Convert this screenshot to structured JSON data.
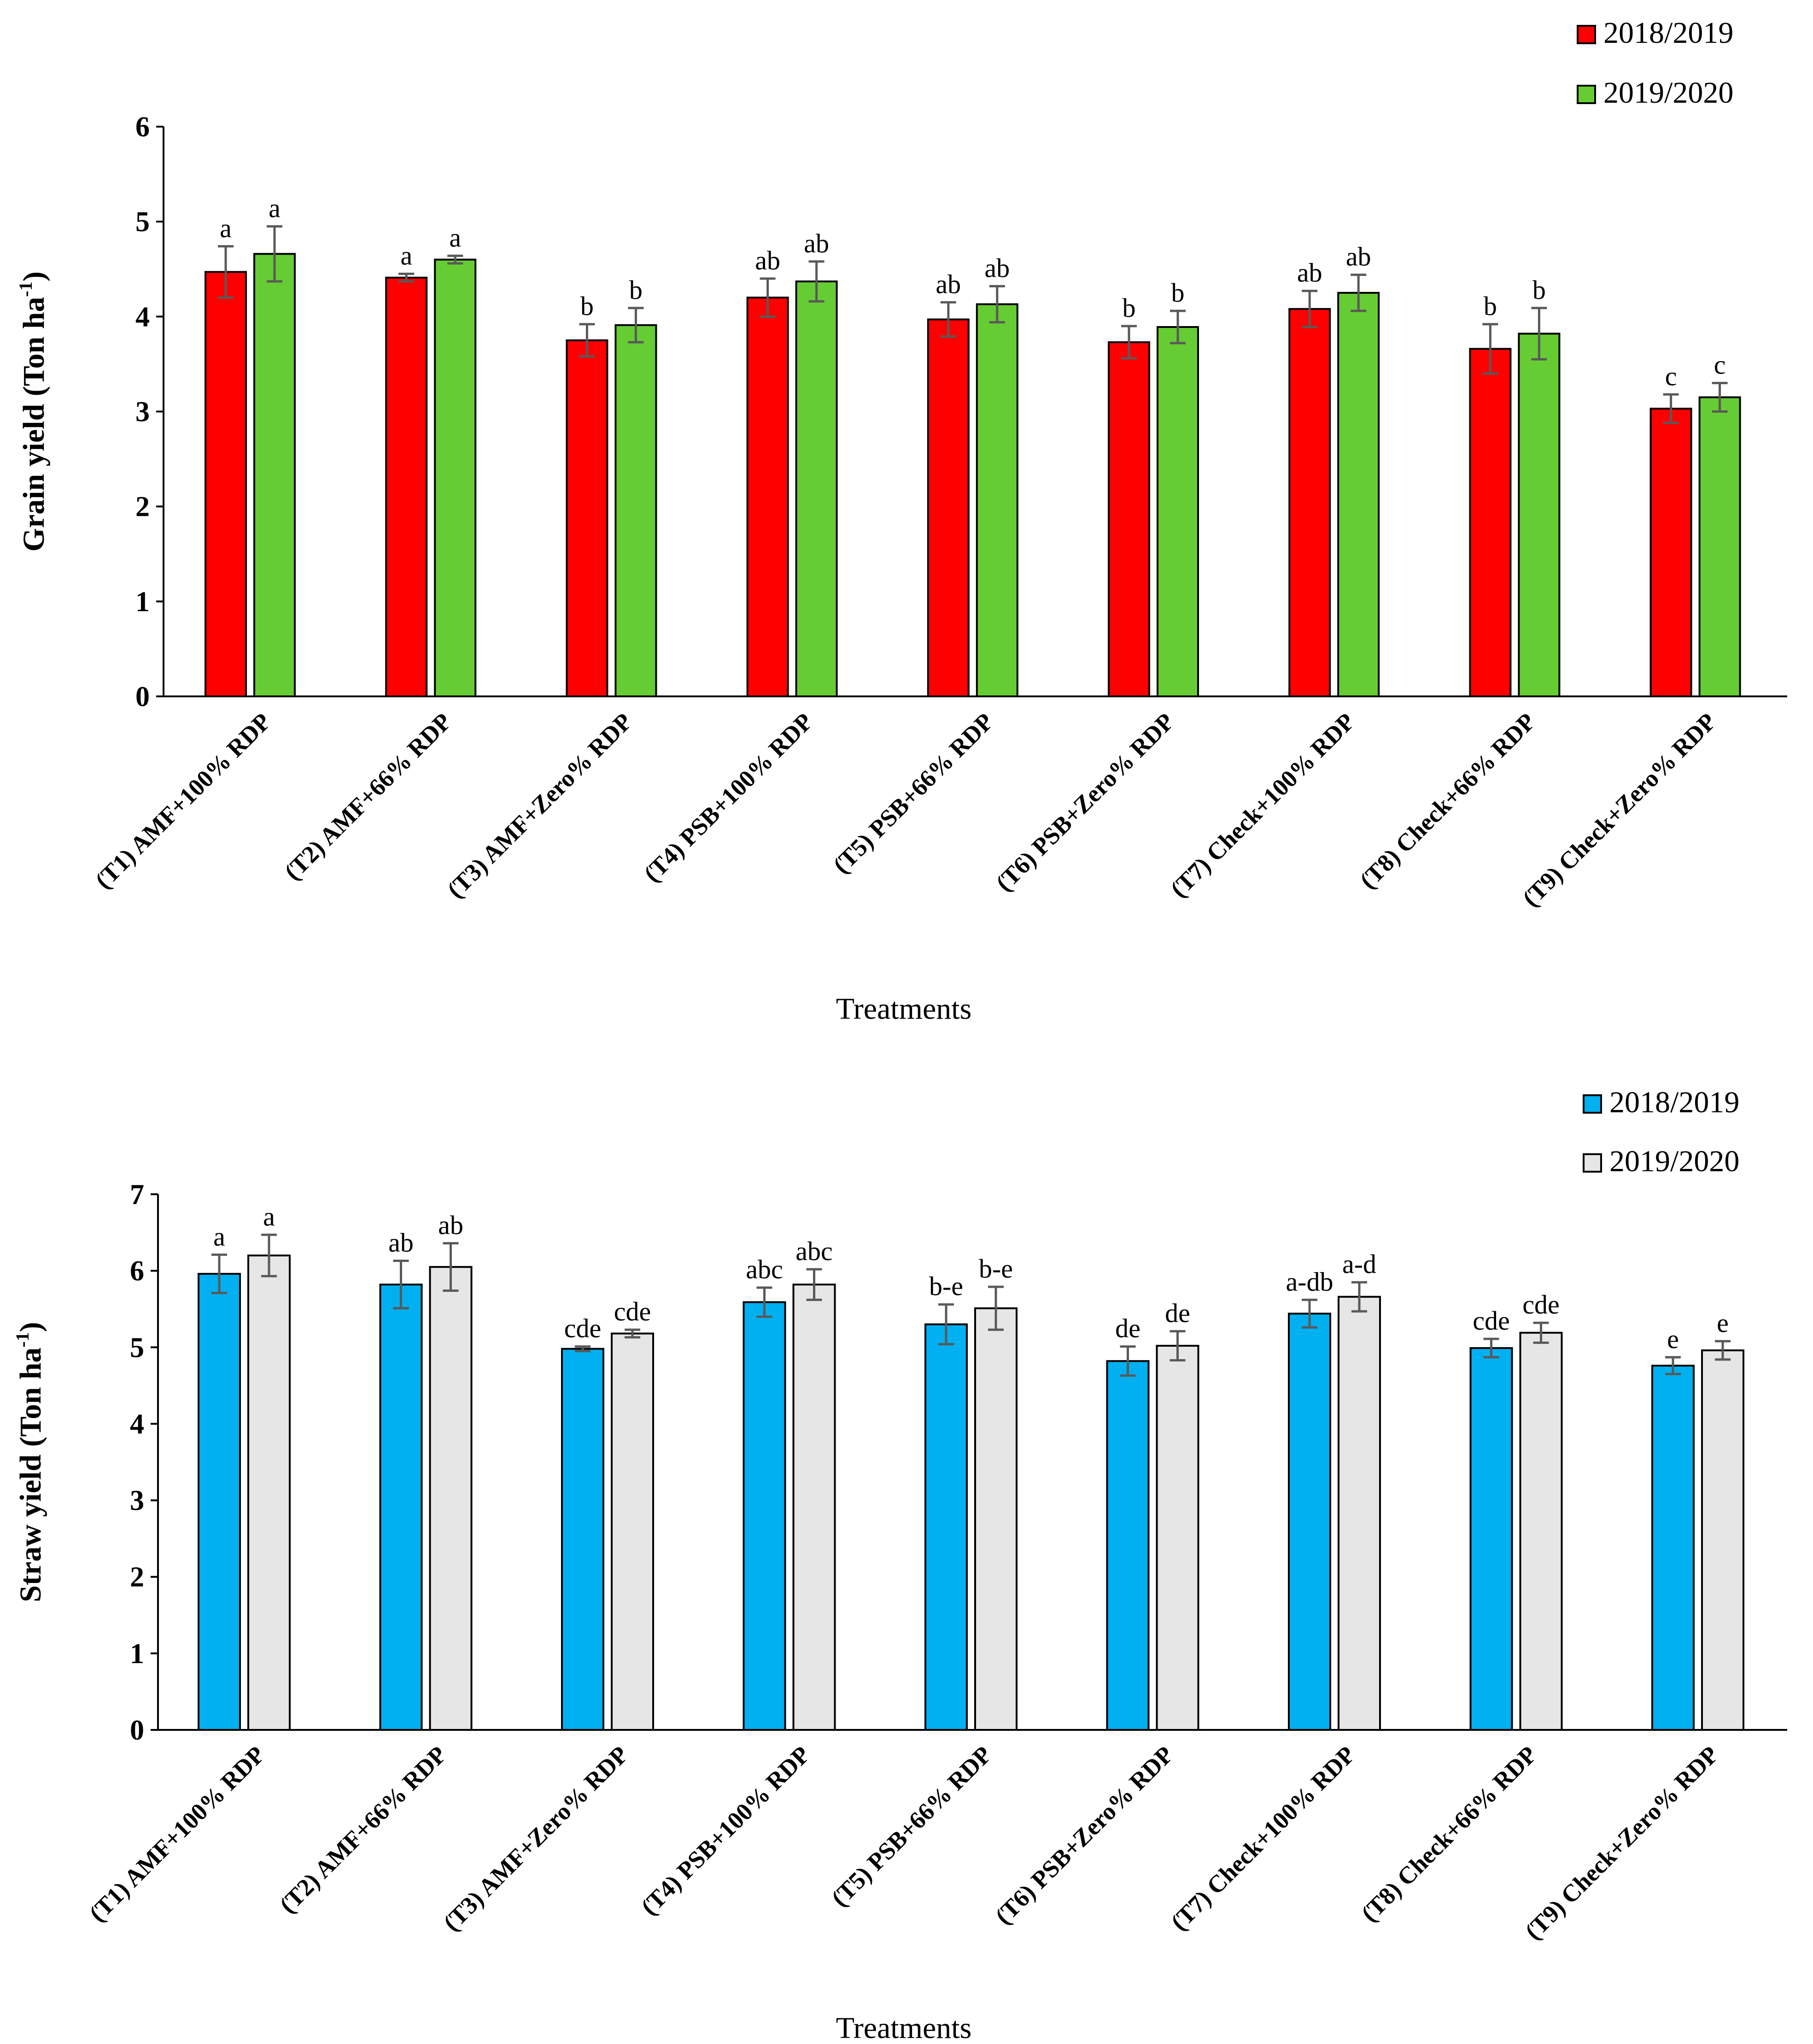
{
  "chart_data": [
    {
      "type": "bar",
      "title": "",
      "ylabel_main": "Grain yield (Ton ha",
      "ylabel_sup": "-1",
      "ylabel_tail": ")",
      "xlabel": "Treatments",
      "ylim": [
        0,
        6
      ],
      "yticks": [
        "0",
        "1",
        "2",
        "3",
        "4",
        "5",
        "6"
      ],
      "categories": [
        "(T1) AMF+100% RDP",
        "(T2) AMF+66% RDP",
        "(T3) AMF+Zero% RDP",
        "(T4) PSB+100% RDP",
        "(T5) PSB+66% RDP",
        "(T6) PSB+Zero% RDP",
        "(T7) Check+100% RDP",
        "(T8) Check+66% RDP",
        "(T9) Check+Zero% RDP"
      ],
      "legend_position": "top-right",
      "series": [
        {
          "name": "2018/2019",
          "color": "#FF0000",
          "values": [
            4.47,
            4.41,
            3.75,
            4.2,
            3.97,
            3.73,
            4.08,
            3.66,
            3.03
          ],
          "errors": [
            0.27,
            0.04,
            0.17,
            0.2,
            0.18,
            0.17,
            0.19,
            0.26,
            0.15
          ],
          "letters": [
            "a",
            "a",
            "b",
            "ab",
            "ab",
            "b",
            "ab",
            "b",
            "c"
          ]
        },
        {
          "name": "2019/2020",
          "color": "#66CC33",
          "values": [
            4.66,
            4.6,
            3.91,
            4.37,
            4.13,
            3.89,
            4.25,
            3.82,
            3.15
          ],
          "errors": [
            0.29,
            0.04,
            0.18,
            0.21,
            0.19,
            0.17,
            0.19,
            0.27,
            0.15
          ],
          "letters": [
            "a",
            "a",
            "b",
            "ab",
            "ab",
            "b",
            "ab",
            "b",
            "c"
          ]
        }
      ]
    },
    {
      "type": "bar",
      "title": "",
      "ylabel_main": "Straw yield (Ton ha",
      "ylabel_sup": "-1",
      "ylabel_tail": ")",
      "xlabel": "Treatments",
      "ylim": [
        0,
        7
      ],
      "yticks": [
        "0",
        "1",
        "2",
        "3",
        "4",
        "5",
        "6",
        "7"
      ],
      "categories": [
        "(T1) AMF+100% RDP",
        "(T2) AMF+66% RDP",
        "(T3) AMF+Zero% RDP",
        "(T4) PSB+100% RDP",
        "(T5) PSB+66% RDP",
        "(T6) PSB+Zero% RDP",
        "(T7) Check+100% RDP",
        "(T8) Check+66% RDP",
        "(T9) Check+Zero% RDP"
      ],
      "legend_position": "top-right",
      "series": [
        {
          "name": "2018/2019",
          "color": "#00B0F0",
          "values": [
            5.96,
            5.82,
            4.98,
            5.59,
            5.3,
            4.82,
            5.44,
            4.99,
            4.76
          ],
          "errors": [
            0.25,
            0.31,
            0.03,
            0.19,
            0.26,
            0.19,
            0.18,
            0.12,
            0.11
          ],
          "letters": [
            "a",
            "ab",
            "cde",
            "abc",
            "b-e",
            "de",
            "a-db",
            "cde",
            "e"
          ]
        },
        {
          "name": "2019/2020",
          "color": "#E7E6E6",
          "values": [
            6.2,
            6.05,
            5.18,
            5.82,
            5.51,
            5.02,
            5.66,
            5.19,
            4.96
          ],
          "errors": [
            0.27,
            0.31,
            0.05,
            0.2,
            0.28,
            0.19,
            0.19,
            0.13,
            0.12
          ],
          "letters": [
            "a",
            "ab",
            "cde",
            "abc",
            "b-e",
            "de",
            "a-d",
            "cde",
            "e"
          ]
        }
      ]
    }
  ]
}
